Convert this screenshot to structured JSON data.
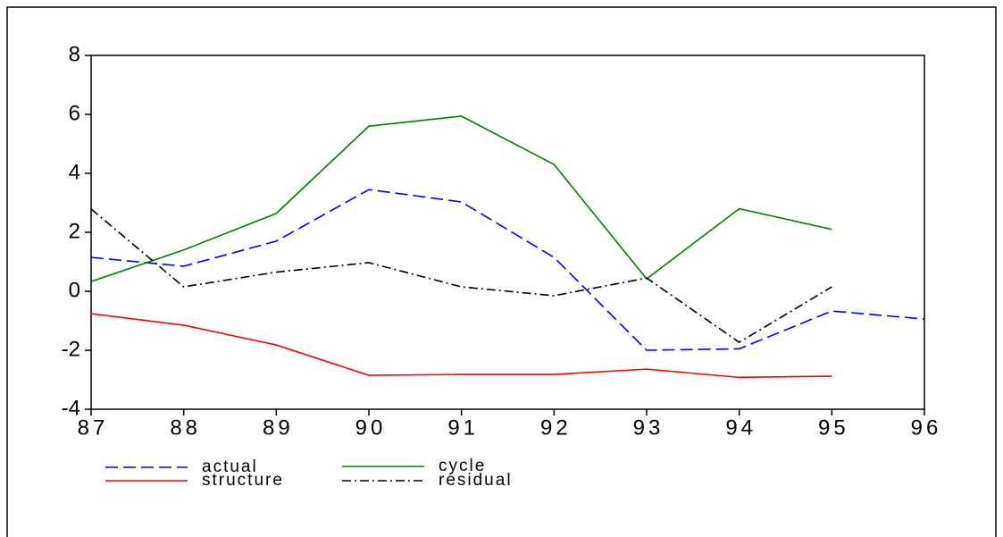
{
  "chart_data": {
    "type": "line",
    "x": [
      87,
      88,
      89,
      90,
      91,
      92,
      93,
      94,
      95,
      96
    ],
    "xlim": [
      87,
      96
    ],
    "xticks": [
      87,
      88,
      89,
      90,
      91,
      92,
      93,
      94,
      95,
      96
    ],
    "ylim": [
      -4,
      8
    ],
    "yticks": [
      -4,
      -2,
      0,
      2,
      4,
      6,
      8
    ],
    "series": [
      {
        "name": "actual",
        "color": "#0000ff",
        "dash": "dashed",
        "values": [
          1.15,
          0.85,
          1.7,
          3.45,
          3.03,
          1.15,
          -2.0,
          -1.95,
          -0.67,
          -0.94
        ]
      },
      {
        "name": "cycle",
        "color": "#008000",
        "dash": "solid",
        "values": [
          0.33,
          1.4,
          2.64,
          5.6,
          5.94,
          4.3,
          0.42,
          2.8,
          2.1,
          null
        ]
      },
      {
        "name": "structure",
        "color": "#ff0000",
        "dash": "solid",
        "values": [
          -0.76,
          -1.15,
          -1.82,
          -2.85,
          -2.82,
          -2.82,
          -2.64,
          -2.92,
          -2.88,
          null
        ]
      },
      {
        "name": "residual",
        "color": "#000000",
        "dash": "dashdot",
        "values": [
          2.79,
          0.15,
          0.65,
          0.97,
          0.15,
          -0.15,
          0.45,
          -1.73,
          0.15,
          null
        ]
      }
    ]
  }
}
